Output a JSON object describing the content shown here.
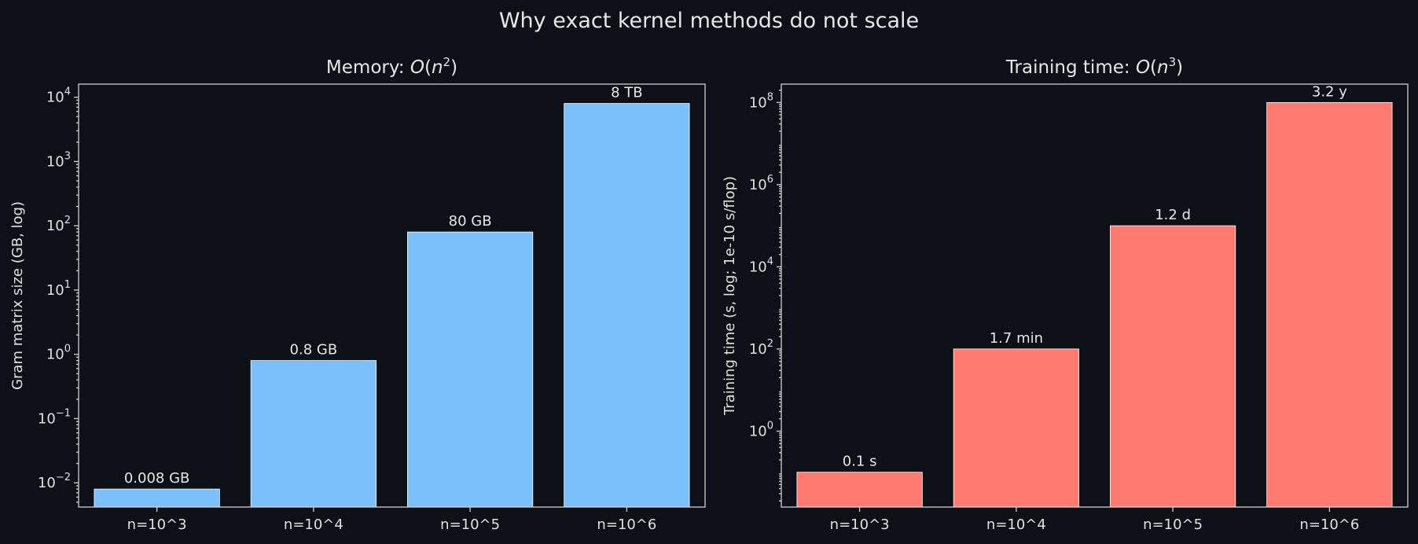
{
  "figure": {
    "suptitle": "Why exact kernel methods do not scale",
    "background": "#0d1117",
    "text_color": "#e6e6e6"
  },
  "chart_data": [
    {
      "type": "bar",
      "title_text": "Memory: ",
      "title_big_o": "O",
      "title_var": "n",
      "title_exp": "2",
      "ylabel": "Gram matrix size (GB, log)",
      "yscale": "log",
      "ylim": [
        0.0042,
        16000
      ],
      "yticks": [
        {
          "value": 0.01,
          "base": "10",
          "exp": "−2"
        },
        {
          "value": 0.1,
          "base": "10",
          "exp": "−1"
        },
        {
          "value": 1,
          "base": "10",
          "exp": "0"
        },
        {
          "value": 10,
          "base": "10",
          "exp": "1"
        },
        {
          "value": 100,
          "base": "10",
          "exp": "2"
        },
        {
          "value": 1000,
          "base": "10",
          "exp": "3"
        },
        {
          "value": 10000,
          "base": "10",
          "exp": "4"
        }
      ],
      "categories": [
        "n=10^3",
        "n=10^4",
        "n=10^5",
        "n=10^6"
      ],
      "values": [
        0.008,
        0.8,
        80,
        8000
      ],
      "labels": [
        "0.008 GB",
        "0.8 GB",
        "80 GB",
        "8 TB"
      ],
      "color": "#7bbffb",
      "grid": false
    },
    {
      "type": "bar",
      "title_text": "Training time: ",
      "title_big_o": "O",
      "title_var": "n",
      "title_exp": "3",
      "ylabel": "Training time (s, log; 1e-10 s/flop)",
      "yscale": "log",
      "ylim": [
        0.0142,
        280000000
      ],
      "yticks": [
        {
          "value": 1,
          "base": "10",
          "exp": "0"
        },
        {
          "value": 100,
          "base": "10",
          "exp": "2"
        },
        {
          "value": 10000,
          "base": "10",
          "exp": "4"
        },
        {
          "value": 1000000,
          "base": "10",
          "exp": "6"
        },
        {
          "value": 100000000,
          "base": "10",
          "exp": "8"
        }
      ],
      "categories": [
        "n=10^3",
        "n=10^4",
        "n=10^5",
        "n=10^6"
      ],
      "values": [
        0.1,
        100,
        100000,
        100000000
      ],
      "labels": [
        "0.1 s",
        "1.7 min",
        "1.2 d",
        "3.2 y"
      ],
      "color": "#ff7a70",
      "grid": false
    }
  ]
}
